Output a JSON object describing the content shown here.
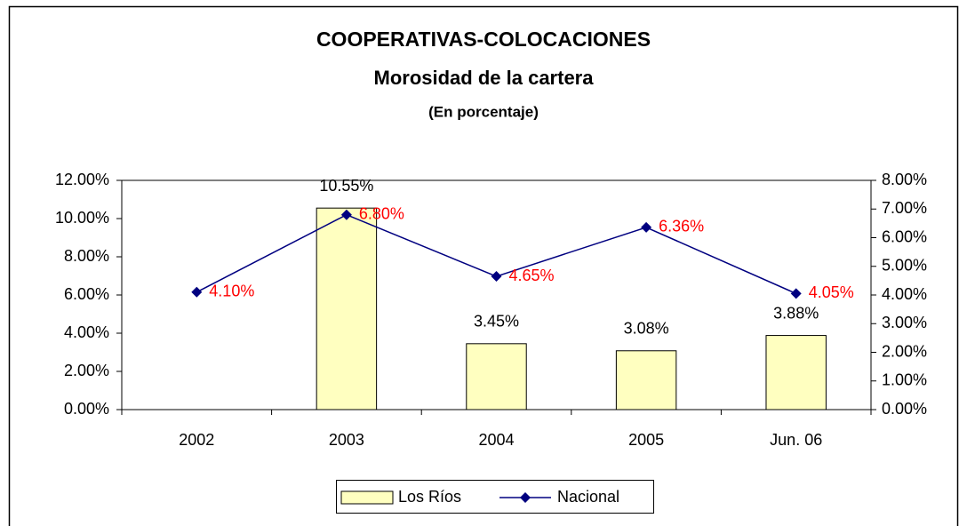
{
  "chart_data": {
    "type": "bar_line",
    "title": "COOPERATIVAS-COLOCACIONES",
    "subtitle": "Morosidad de la cartera",
    "unit_note": "(En porcentaje)",
    "categories": [
      "2002",
      "2003",
      "2004",
      "2005",
      "Jun. 06"
    ],
    "series": [
      {
        "name": "Los Ríos",
        "type": "bar",
        "color": "#ffffc0",
        "values": [
          null,
          10.55,
          3.45,
          3.08,
          3.88
        ],
        "value_labels": [
          null,
          "10.55%",
          "3.45%",
          "3.08%",
          "3.88%"
        ]
      },
      {
        "name": "Nacional",
        "type": "line",
        "axis": "y2",
        "color": "#000080",
        "label_color": "#ff0000",
        "values": [
          4.1,
          6.8,
          4.65,
          6.36,
          4.05
        ],
        "value_labels": [
          "4.10%",
          "6.80%",
          "4.65%",
          "6.36%",
          "4.05%"
        ]
      }
    ],
    "ylim": [
      0,
      12
    ],
    "yticks": [
      {
        "value": 0,
        "label": "0.00%"
      },
      {
        "value": 2,
        "label": "2.00%"
      },
      {
        "value": 4,
        "label": "4.00%"
      },
      {
        "value": 6,
        "label": "6.00%"
      },
      {
        "value": 8,
        "label": "8.00%"
      },
      {
        "value": 10,
        "label": "10.00%"
      },
      {
        "value": 12,
        "label": "12.00%"
      }
    ],
    "y2lim": [
      0,
      8
    ],
    "y2ticks": [
      {
        "value": 0,
        "label": "0.00%"
      },
      {
        "value": 1,
        "label": "1.00%"
      },
      {
        "value": 2,
        "label": "2.00%"
      },
      {
        "value": 3,
        "label": "3.00%"
      },
      {
        "value": 4,
        "label": "4.00%"
      },
      {
        "value": 5,
        "label": "5.00%"
      },
      {
        "value": 6,
        "label": "6.00%"
      },
      {
        "value": 7,
        "label": "7.00%"
      },
      {
        "value": 8,
        "label": "8.00%"
      }
    ],
    "grid": false,
    "legend": "bottom"
  }
}
